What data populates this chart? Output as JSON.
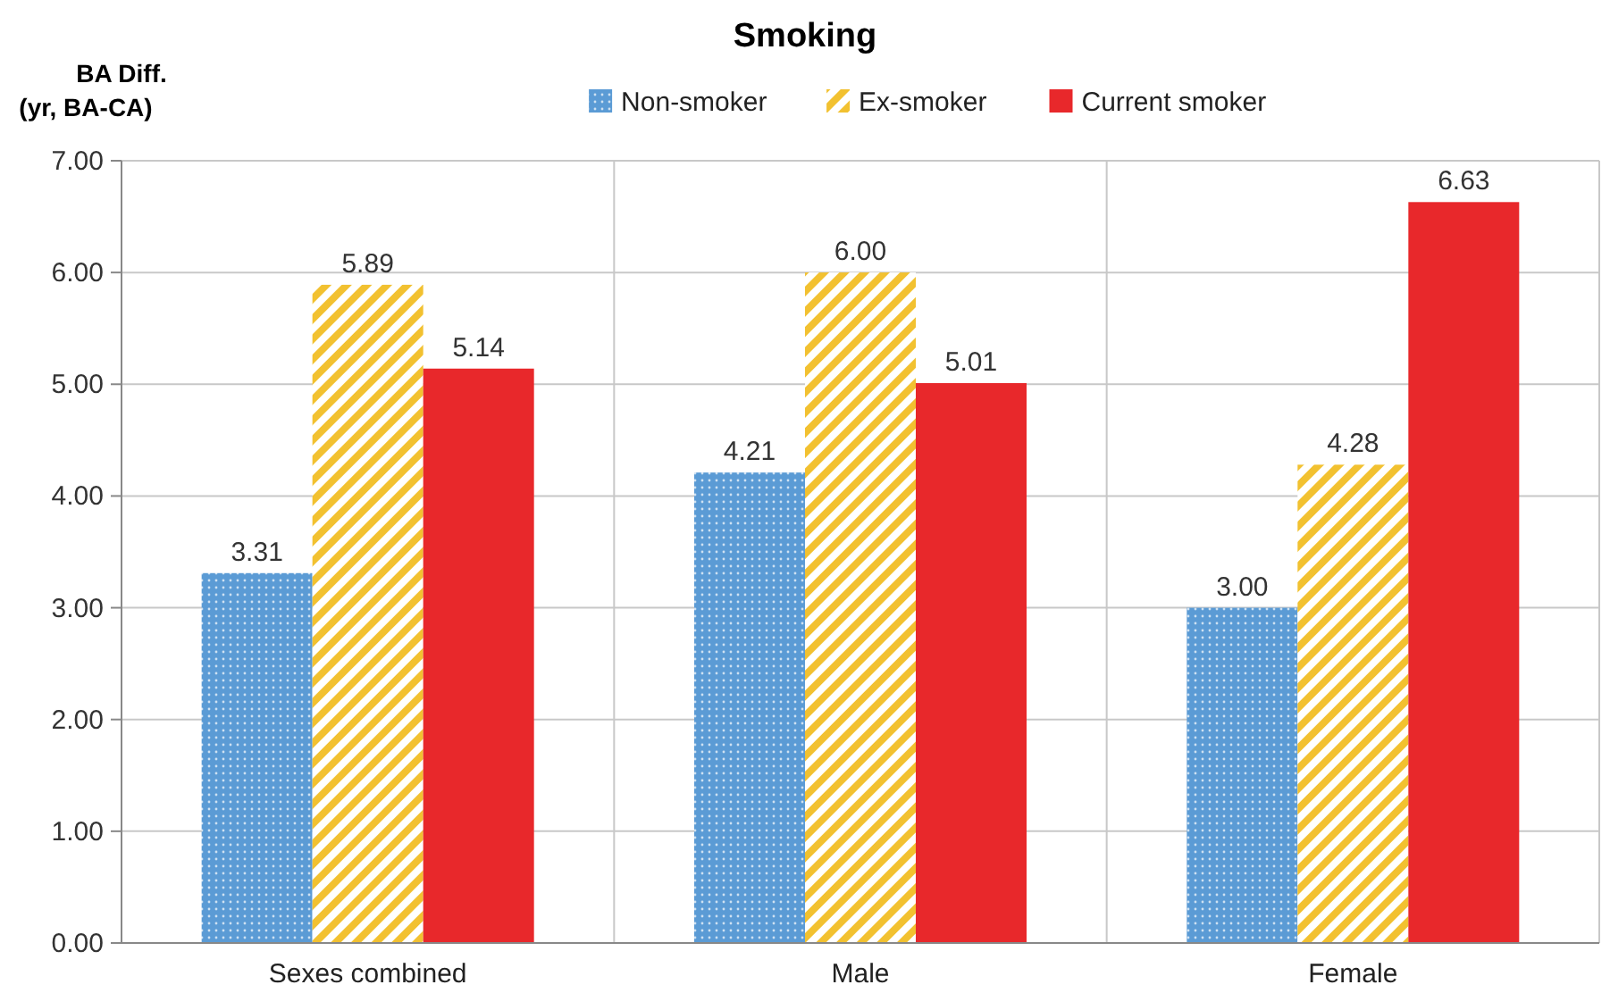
{
  "chart_data": {
    "type": "bar",
    "title": "Smoking",
    "ylabel": "BA Diff.\n(yr, BA-CA)",
    "categories": [
      "Sexes combined",
      "Male",
      "Female"
    ],
    "series": [
      {
        "name": "Non-smoker",
        "color": "#5b9bd5",
        "values": [
          3.31,
          4.21,
          3.0
        ]
      },
      {
        "name": "Ex-smoker",
        "color": "#f2c130",
        "values": [
          5.89,
          6.0,
          4.28
        ]
      },
      {
        "name": "Current smoker",
        "color": "#e8282b",
        "values": [
          5.14,
          5.01,
          6.63
        ]
      }
    ],
    "value_labels": [
      [
        "3.31",
        "4.21",
        "3.00"
      ],
      [
        "5.89",
        "6.00",
        "4.28"
      ],
      [
        "5.14",
        "5.01",
        "6.63"
      ]
    ],
    "ylim": [
      0,
      7
    ],
    "yticks": [
      {
        "value": 0,
        "label": "0.00"
      },
      {
        "value": 1,
        "label": "1.00"
      },
      {
        "value": 2,
        "label": "2.00"
      },
      {
        "value": 3,
        "label": "3.00"
      },
      {
        "value": 4,
        "label": "4.00"
      },
      {
        "value": 5,
        "label": "5.00"
      },
      {
        "value": 6,
        "label": "6.00"
      },
      {
        "value": 7,
        "label": "7.00"
      }
    ],
    "grid": true,
    "legend": "top"
  }
}
